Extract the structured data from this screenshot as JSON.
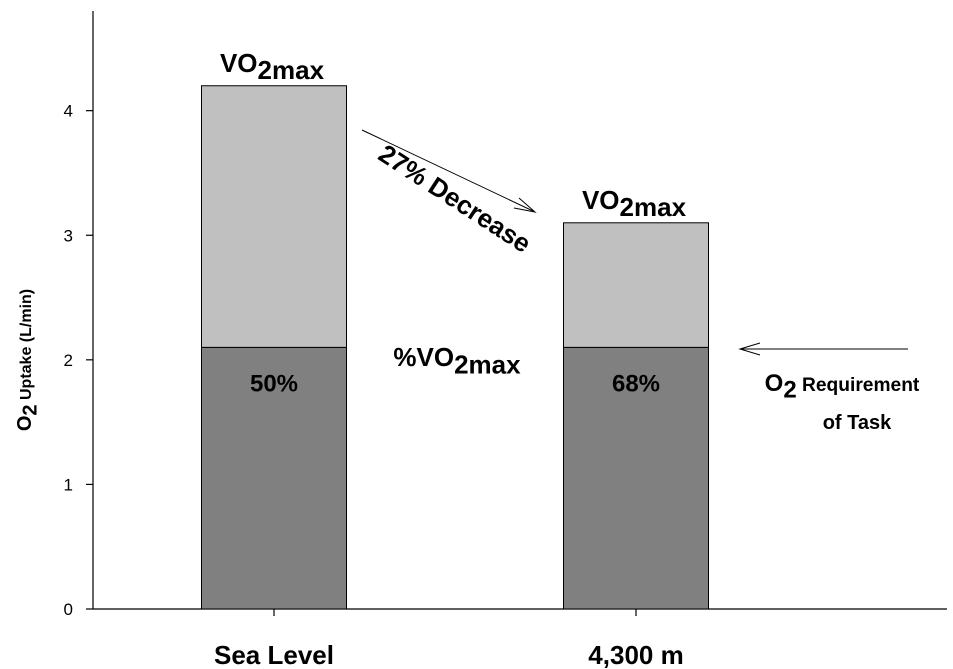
{
  "chart_data": {
    "type": "bar",
    "stacked": true,
    "y_label": {
      "text": "O",
      "sub": "2",
      "rest": " Uptake (L/min)"
    },
    "categories": [
      "Sea Level",
      "4,300 m"
    ],
    "series": [
      {
        "color": "#808080",
        "values": [
          2.1,
          2.1
        ]
      },
      {
        "color": "#c0c0c0",
        "values": [
          2.1,
          1.0
        ]
      }
    ],
    "ylim": [
      0,
      4.8
    ],
    "yticks": [
      0,
      1,
      2,
      3,
      4
    ],
    "annotations": {
      "top_labels": [
        {
          "text": "VO",
          "sub": "2max"
        },
        {
          "text": "VO",
          "sub": "2max"
        }
      ],
      "segment_labels": [
        "50%",
        "68%"
      ],
      "decrease": "27% Decrease",
      "middle": {
        "text": "%VO",
        "sub": "2max"
      },
      "requirement": {
        "text": "O",
        "sub": "2",
        "rest": " Requirement",
        "line2": "of Task"
      }
    }
  }
}
